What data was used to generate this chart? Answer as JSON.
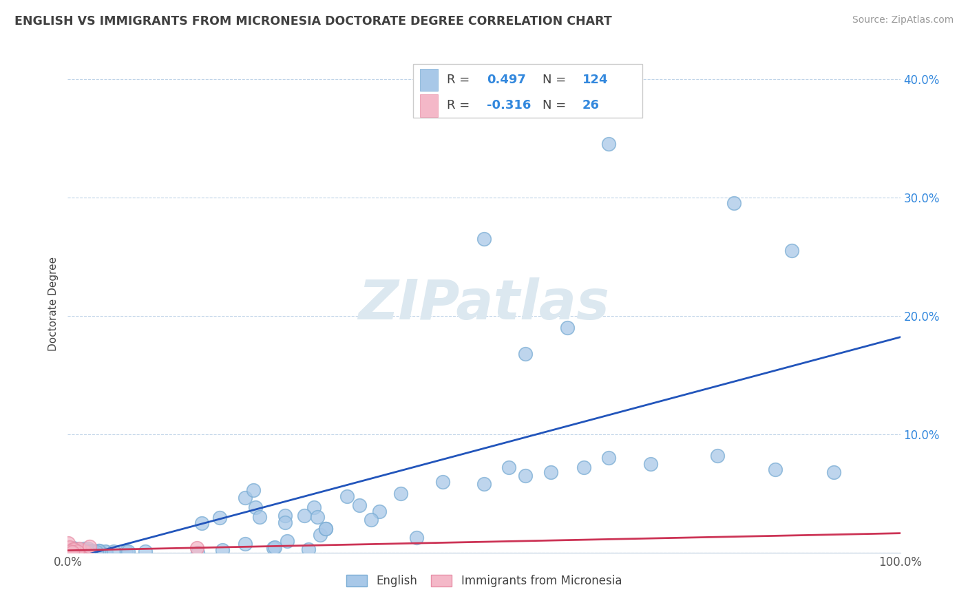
{
  "title": "ENGLISH VS IMMIGRANTS FROM MICRONESIA DOCTORATE DEGREE CORRELATION CHART",
  "source_text": "Source: ZipAtlas.com",
  "ylabel": "Doctorate Degree",
  "xlim": [
    0.0,
    1.0
  ],
  "ylim": [
    0.0,
    0.42
  ],
  "ytick_vals": [
    0.0,
    0.1,
    0.2,
    0.3,
    0.4
  ],
  "yticklabels_right": [
    "",
    "10.0%",
    "20.0%",
    "30.0%",
    "40.0%"
  ],
  "english_R": 0.497,
  "english_N": 124,
  "micronesia_R": -0.316,
  "micronesia_N": 26,
  "english_color": "#a8c8e8",
  "english_edge_color": "#7aadd4",
  "micronesia_color": "#f4b8c8",
  "micronesia_edge_color": "#e890a8",
  "english_line_color": "#2255bb",
  "micronesia_line_color": "#cc3355",
  "background_color": "#ffffff",
  "grid_color": "#c0d4e8",
  "title_color": "#404040",
  "stats_color": "#3388dd",
  "watermark_color": "#dce8f0",
  "english_seed": 42,
  "micronesia_seed": 77
}
